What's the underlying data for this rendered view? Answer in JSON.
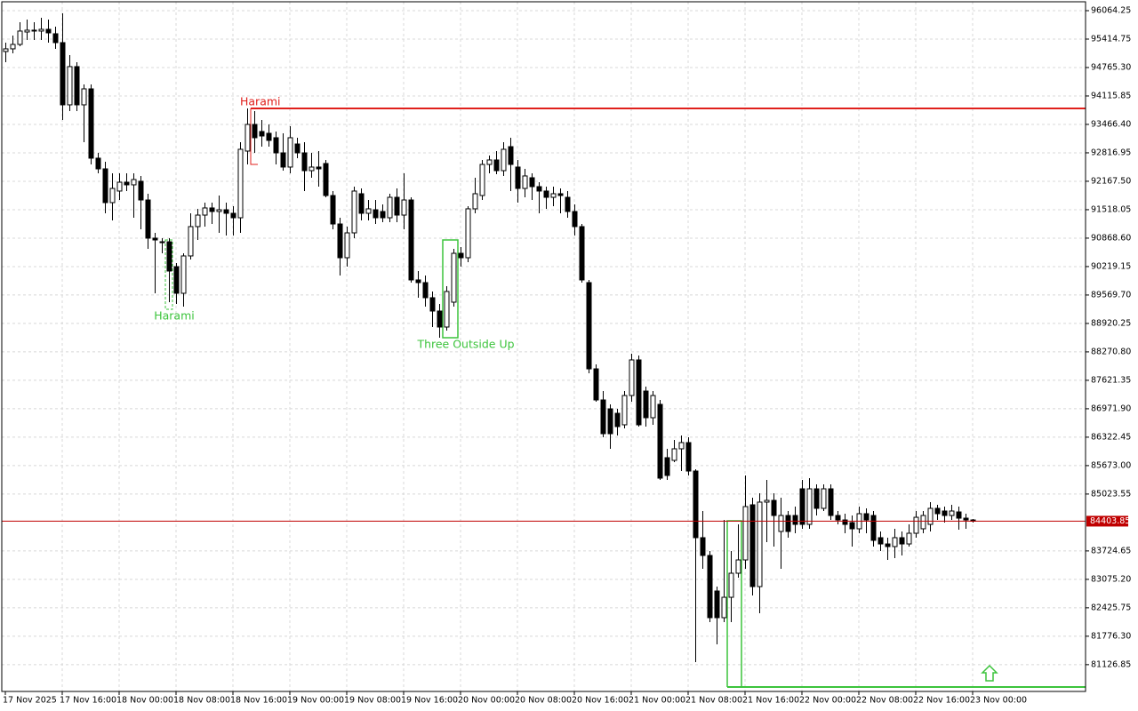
{
  "chart_data": {
    "type": "candlestick",
    "up_color": "#ffffff",
    "down_color": "#000000",
    "wick_color": "#000000",
    "grid": true,
    "ylim": [
      80515,
      96267
    ],
    "yticks": [
      96064.25,
      95414.75,
      {
        "value": 94765.3,
        "label": "94765.30"
      },
      94115.85,
      {
        "value": 93466.4,
        "label": "93466.40"
      },
      92816.95,
      {
        "value": 92167.5,
        "label": "92167.50"
      },
      91518.05,
      {
        "value": 90868.6,
        "label": "90868.60"
      },
      90219.15,
      {
        "value": 89569.7,
        "label": "89569.70"
      },
      88920.25,
      {
        "value": 88270.8,
        "label": "88270.80"
      },
      87621.35,
      {
        "value": 86971.9,
        "label": "86971.90"
      },
      86322.45,
      {
        "value": 85673,
        "label": "85673.00"
      },
      85023.55,
      83724.65,
      {
        "value": 83075.2,
        "label": "83075.20"
      },
      82425.75,
      {
        "value": 81776.3,
        "label": "81776.30"
      },
      81126.85
    ],
    "current_price": 84403.85,
    "current_color": "#c00000",
    "levels": [
      {
        "value": 93831,
        "color": "#e0201c"
      },
      {
        "value": 80616,
        "color": "#3cc43c"
      }
    ],
    "annotations": [
      {
        "text": "Harami",
        "color": "#e0201c"
      },
      {
        "text": "Harami",
        "color": "#3cc43c"
      },
      {
        "text": "Three Outside Up",
        "color": "#3cc43c"
      }
    ],
    "categories": [
      "17 Nov 2025",
      null,
      null,
      null,
      null,
      null,
      null,
      null,
      "17 Nov 16:00",
      null,
      null,
      null,
      null,
      null,
      null,
      null,
      "18 Nov 00:00",
      null,
      null,
      null,
      null,
      null,
      null,
      null,
      "18 Nov 08:00",
      null,
      null,
      null,
      null,
      null,
      null,
      null,
      "18 Nov 16:00",
      null,
      null,
      null,
      null,
      null,
      null,
      null,
      "19 Nov 00:00",
      null,
      null,
      null,
      null,
      null,
      null,
      null,
      "19 Nov 08:00",
      null,
      null,
      null,
      null,
      null,
      null,
      null,
      "19 Nov 16:00",
      null,
      null,
      null,
      null,
      null,
      null,
      null,
      "20 Nov 00:00",
      null,
      null,
      null,
      null,
      null,
      null,
      null,
      "20 Nov 08:00",
      null,
      null,
      null,
      null,
      null,
      null,
      null,
      "20 Nov 16:00",
      null,
      null,
      null,
      null,
      null,
      null,
      null,
      "21 Nov 00:00",
      null,
      null,
      null,
      null,
      null,
      null,
      null,
      "21 Nov 08:00",
      null,
      null,
      null,
      null,
      null,
      null,
      null,
      "21 Nov 16:00",
      null,
      null,
      null,
      null,
      null,
      null,
      null,
      "22 Nov 00:00",
      null,
      null,
      null,
      null,
      null,
      null,
      null,
      "22 Nov 08:00",
      null,
      null,
      null,
      null,
      null,
      null,
      null,
      "22 Nov 16:00",
      null,
      null,
      null,
      null,
      null,
      null,
      null,
      "23 Nov 00:00"
    ],
    "ohlc": [
      [
        95131,
        95334,
        94887,
        95192
      ],
      [
        95192,
        95496,
        95090,
        95293
      ],
      [
        95293,
        95800,
        95252,
        95598
      ],
      [
        95577,
        95861,
        95394,
        95618
      ],
      [
        95598,
        95800,
        95394,
        95618
      ],
      [
        95598,
        95902,
        95394,
        95638
      ],
      [
        95638,
        95861,
        95334,
        95557
      ],
      [
        95537,
        95699,
        95192,
        95334
      ],
      [
        95334,
        96004,
        93568,
        93913
      ],
      [
        93913,
        95049,
        93770,
        94786
      ],
      [
        94786,
        94887,
        93770,
        93913
      ],
      [
        93913,
        94380,
        93060,
        94278
      ],
      [
        94278,
        94380,
        92552,
        92695
      ],
      [
        92695,
        92816,
        92350,
        92451
      ],
      [
        92451,
        92613,
        91436,
        91680
      ],
      [
        91680,
        92350,
        91274,
        92004
      ],
      [
        91944,
        92350,
        91740,
        92146
      ],
      [
        92146,
        92350,
        91944,
        92086
      ],
      [
        92086,
        92350,
        91334,
        92207
      ],
      [
        92167,
        92289,
        91071,
        91740
      ],
      [
        91740,
        91883,
        90624,
        90868
      ],
      [
        90868,
        90989,
        89609,
        90827
      ],
      [
        90786,
        90868,
        90522,
        90780
      ],
      [
        90786,
        90868,
        89406,
        90117
      ],
      [
        90218,
        90299,
        89365,
        89609
      ],
      [
        89609,
        90522,
        89304,
        90462
      ],
      [
        90462,
        91436,
        90380,
        91132
      ],
      [
        91132,
        91538,
        90827,
        91395
      ],
      [
        91395,
        91680,
        91132,
        91558
      ],
      [
        91558,
        91680,
        91192,
        91477
      ],
      [
        91477,
        91842,
        90989,
        91517
      ],
      [
        91517,
        91680,
        90928,
        91436
      ],
      [
        91436,
        91598,
        90928,
        91334
      ],
      [
        91334,
        93060,
        90989,
        92898
      ],
      [
        92857,
        93831,
        92552,
        93466
      ],
      [
        93466,
        93770,
        92816,
        93162
      ],
      [
        93304,
        93568,
        92958,
        93202
      ],
      [
        93263,
        93466,
        92958,
        93101
      ],
      [
        93162,
        93304,
        92552,
        92816
      ],
      [
        92816,
        93263,
        92410,
        92492
      ],
      [
        92492,
        93425,
        92350,
        93162
      ],
      [
        93019,
        93162,
        92695,
        92816
      ],
      [
        92816,
        93060,
        91944,
        92410
      ],
      [
        92410,
        92816,
        92248,
        92492
      ],
      [
        92492,
        92857,
        92045,
        92451
      ],
      [
        92573,
        92654,
        91801,
        91842
      ],
      [
        91842,
        91944,
        91071,
        91192
      ],
      [
        91192,
        91334,
        90015,
        90421
      ],
      [
        90421,
        91132,
        90218,
        90989
      ],
      [
        90989,
        92045,
        90868,
        91944
      ],
      [
        91883,
        92004,
        91274,
        91436
      ],
      [
        91436,
        91740,
        91274,
        91538
      ],
      [
        91517,
        91740,
        91192,
        91334
      ],
      [
        91477,
        91639,
        91233,
        91334
      ],
      [
        91334,
        91883,
        91233,
        91801
      ],
      [
        91801,
        92004,
        91233,
        91395
      ],
      [
        91395,
        92350,
        91071,
        91740
      ],
      [
        91740,
        91801,
        89853,
        89914
      ],
      [
        89914,
        90117,
        89508,
        89853
      ],
      [
        89853,
        90015,
        89304,
        89508
      ],
      [
        89508,
        89650,
        88838,
        89203
      ],
      [
        89203,
        89365,
        88594,
        88838
      ],
      [
        88838,
        89772,
        88756,
        89650
      ],
      [
        89406,
        90624,
        89304,
        90522
      ],
      [
        90522,
        90665,
        90218,
        90421
      ],
      [
        90421,
        91598,
        90320,
        91538
      ],
      [
        91538,
        92248,
        91436,
        91883
      ],
      [
        91842,
        92654,
        91740,
        92552
      ],
      [
        92552,
        92756,
        92350,
        92654
      ],
      [
        92654,
        92857,
        92329,
        92410
      ],
      [
        92410,
        93060,
        92289,
        92898
      ],
      [
        92958,
        93162,
        91944,
        92552
      ],
      [
        92492,
        92654,
        91680,
        92004
      ],
      [
        92004,
        92451,
        91801,
        92289
      ],
      [
        92248,
        92350,
        91740,
        92045
      ],
      [
        92045,
        92146,
        91436,
        91944
      ],
      [
        91944,
        92045,
        91538,
        91801
      ],
      [
        91801,
        92045,
        91598,
        91883
      ],
      [
        91883,
        92004,
        91436,
        91842
      ],
      [
        91801,
        91944,
        91334,
        91477
      ],
      [
        91477,
        91639,
        90928,
        91132
      ],
      [
        91132,
        91192,
        89853,
        89914
      ],
      [
        89853,
        89914,
        87782,
        87883
      ],
      [
        87883,
        87985,
        87132,
        87173
      ],
      [
        87173,
        87376,
        86320,
        86402
      ],
      [
        86970,
        87072,
        86057,
        86402
      ],
      [
        86868,
        86970,
        86361,
        86564
      ],
      [
        86605,
        87376,
        86523,
        87274
      ],
      [
        87274,
        88229,
        87132,
        88087
      ],
      [
        88087,
        88188,
        86564,
        86605
      ],
      [
        87376,
        87478,
        86564,
        86767
      ],
      [
        86767,
        87376,
        86605,
        87274
      ],
      [
        87072,
        87173,
        85346,
        85387
      ],
      [
        85854,
        86057,
        85346,
        85448
      ],
      [
        85793,
        86260,
        85752,
        86057
      ],
      [
        86057,
        86361,
        85549,
        86199
      ],
      [
        86199,
        86320,
        85448,
        85549
      ],
      [
        85549,
        85590,
        81184,
        84027
      ],
      [
        84027,
        84636,
        83316,
        83621
      ],
      [
        83621,
        83722,
        82098,
        82200
      ],
      [
        82809,
        82910,
        81590,
        82200
      ],
      [
        82200,
        84432,
        82098,
        82666
      ],
      [
        82666,
        83722,
        82098,
        83215
      ],
      [
        83215,
        84331,
        83113,
        83519
      ],
      [
        83519,
        85448,
        83316,
        84737
      ],
      [
        84778,
        84940,
        82707,
        82910
      ],
      [
        82910,
        85042,
        82301,
        84839
      ],
      [
        84839,
        85346,
        83925,
        84879
      ],
      [
        84879,
        85042,
        83824,
        84534
      ],
      [
        84169,
        84940,
        83316,
        84534
      ],
      [
        84534,
        84636,
        84027,
        84169
      ],
      [
        84534,
        84737,
        84128,
        84331
      ],
      [
        85143,
        85346,
        84230,
        84331
      ],
      [
        84331,
        85387,
        84230,
        85143
      ],
      [
        85143,
        85245,
        84534,
        84697
      ],
      [
        84697,
        85245,
        84636,
        85143
      ],
      [
        85143,
        85245,
        84432,
        84534
      ],
      [
        84534,
        84636,
        84331,
        84432
      ],
      [
        84432,
        84575,
        84128,
        84331
      ],
      [
        84372,
        84534,
        83824,
        84230
      ],
      [
        84230,
        84737,
        84128,
        84575
      ],
      [
        84575,
        84697,
        84128,
        84432
      ],
      [
        84534,
        84636,
        83824,
        83966
      ],
      [
        84027,
        84169,
        83722,
        83884
      ],
      [
        83884,
        84027,
        83519,
        83824
      ],
      [
        83824,
        84230,
        83560,
        84027
      ],
      [
        84027,
        84169,
        83621,
        83884
      ],
      [
        83884,
        84331,
        83824,
        84128
      ],
      [
        84128,
        84636,
        84027,
        84493
      ],
      [
        84230,
        84636,
        84128,
        84534
      ],
      [
        84331,
        84839,
        84169,
        84697
      ],
      [
        84697,
        84778,
        84432,
        84575
      ],
      [
        84636,
        84737,
        84372,
        84534
      ],
      [
        84534,
        84778,
        84432,
        84636
      ],
      [
        84615,
        84737,
        84209,
        84473
      ],
      [
        84473,
        84575,
        84230,
        84432
      ],
      [
        84432,
        84452,
        84372,
        84404
      ]
    ]
  }
}
